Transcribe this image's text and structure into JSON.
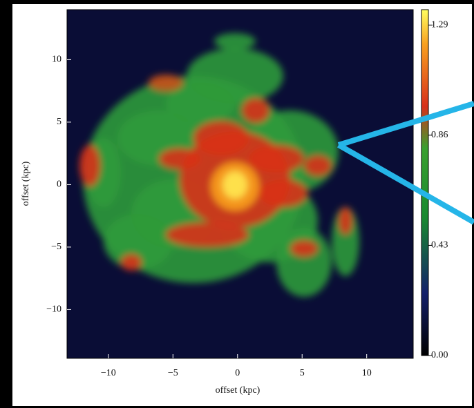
{
  "chart_data": {
    "type": "image",
    "xlabel": "offset (kpc)",
    "ylabel": "offset (kpc)",
    "xlim": [
      -13.2,
      13.6
    ],
    "ylim": [
      -13.9,
      14.0
    ],
    "xticks": [
      {
        "value": -10,
        "label": "−10"
      },
      {
        "value": -5,
        "label": "−5"
      },
      0,
      5,
      10
    ],
    "yticks": [
      {
        "value": -10,
        "label": "−10"
      },
      {
        "value": -5,
        "label": "−5"
      },
      0,
      5,
      10
    ],
    "clim": [
      0,
      1.35
    ],
    "cticks": [
      {
        "value": 0,
        "label": "0.00"
      },
      0.43,
      0.86,
      1.29
    ]
  }
}
